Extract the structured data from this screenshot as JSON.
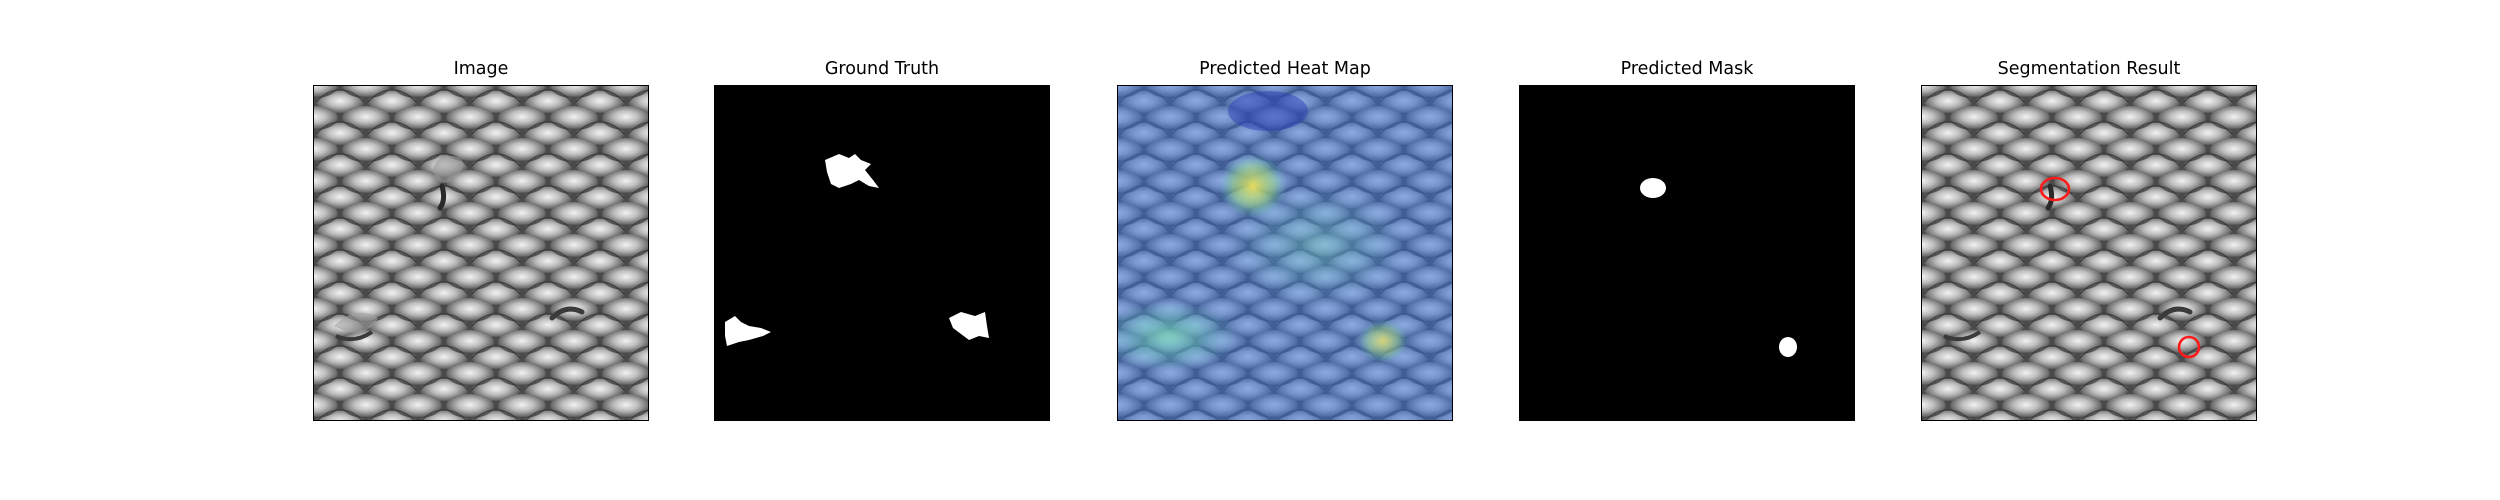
{
  "figure": {
    "panels": [
      {
        "title": "Image"
      },
      {
        "title": "Ground Truth"
      },
      {
        "title": "Predicted Heat Map"
      },
      {
        "title": "Predicted Mask"
      },
      {
        "title": "Segmentation Result"
      }
    ]
  },
  "colors": {
    "mesh_base": "#7a7a7a",
    "mesh_highlight": "#e6e6e6",
    "mesh_shadow": "#3a3a3a",
    "mask_background": "#000000",
    "mask_foreground": "#ffffff",
    "heat_low": "#3c6fd6",
    "heat_mid": "#5fd3c6",
    "heat_high": "#e9e35a",
    "contour": "#ff1a1a"
  }
}
